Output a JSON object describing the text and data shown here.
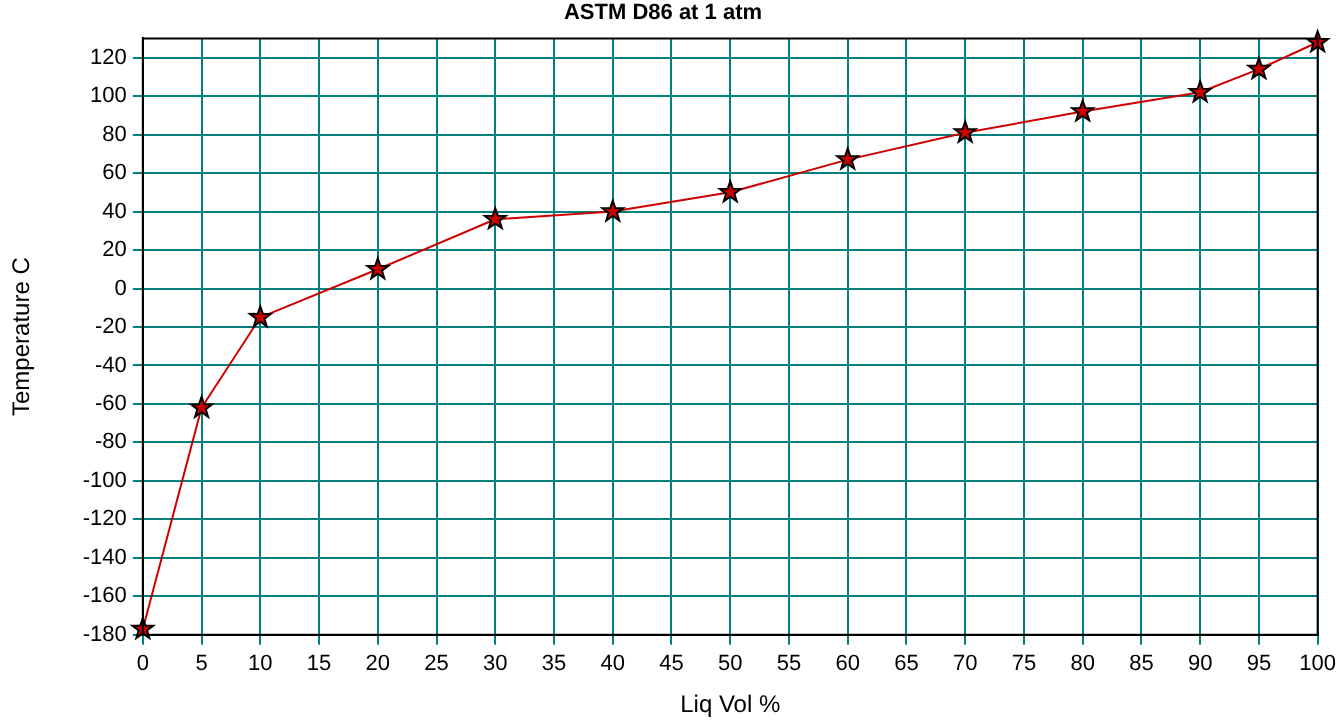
{
  "chart_data": {
    "type": "line",
    "title": "ASTM D86 at 1 atm",
    "xlabel": "Liq Vol %",
    "ylabel": "Temperature C",
    "x": [
      0,
      5,
      10,
      20,
      30,
      40,
      50,
      60,
      70,
      80,
      90,
      95,
      100
    ],
    "series": [
      {
        "color": "#cc0000",
        "values": [
          -177,
          -62,
          -15,
          10,
          36,
          40,
          50,
          67,
          81,
          92,
          102,
          114,
          128
        ]
      }
    ],
    "xlim": [
      0,
      100
    ],
    "xticks": [
      0,
      5,
      10,
      15,
      20,
      25,
      30,
      35,
      40,
      45,
      50,
      55,
      60,
      65,
      70,
      75,
      80,
      85,
      90,
      95,
      100
    ],
    "ylim": [
      -180,
      130
    ],
    "yticks": [
      -180,
      -160,
      -140,
      -120,
      -100,
      -80,
      -60,
      -40,
      -20,
      0,
      20,
      40,
      60,
      80,
      100,
      120
    ],
    "grid": true,
    "legend": false,
    "marker": "star",
    "line_style": "solid"
  }
}
